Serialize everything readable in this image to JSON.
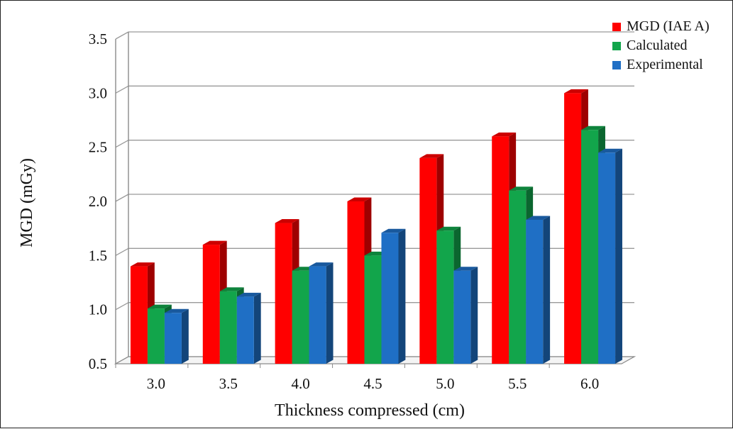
{
  "chart_data": {
    "type": "bar",
    "title": "",
    "xlabel": "Thickness compressed (cm)",
    "ylabel": "MGD (mGy)",
    "categories": [
      "3.0",
      "3.5",
      "4.0",
      "4.5",
      "5.0",
      "5.5",
      "6.0"
    ],
    "yticks": [
      "0.5",
      "1.0",
      "1.5",
      "2.0",
      "2.5",
      "3.0",
      "3.5"
    ],
    "ylim": [
      0.5,
      3.5
    ],
    "grid": true,
    "legend_position": "top-right",
    "series": [
      {
        "name": "MGD (IAE A)",
        "color": "#ff0000",
        "values": [
          1.4,
          1.6,
          1.8,
          2.0,
          2.4,
          2.6,
          3.0
        ]
      },
      {
        "name": "Calculated",
        "color": "#12a54b",
        "values": [
          1.01,
          1.17,
          1.36,
          1.5,
          1.73,
          2.1,
          2.66
        ]
      },
      {
        "name": "Experimental",
        "color": "#1f6fc5",
        "values": [
          0.97,
          1.12,
          1.4,
          1.71,
          1.36,
          1.83,
          2.45
        ]
      }
    ]
  }
}
